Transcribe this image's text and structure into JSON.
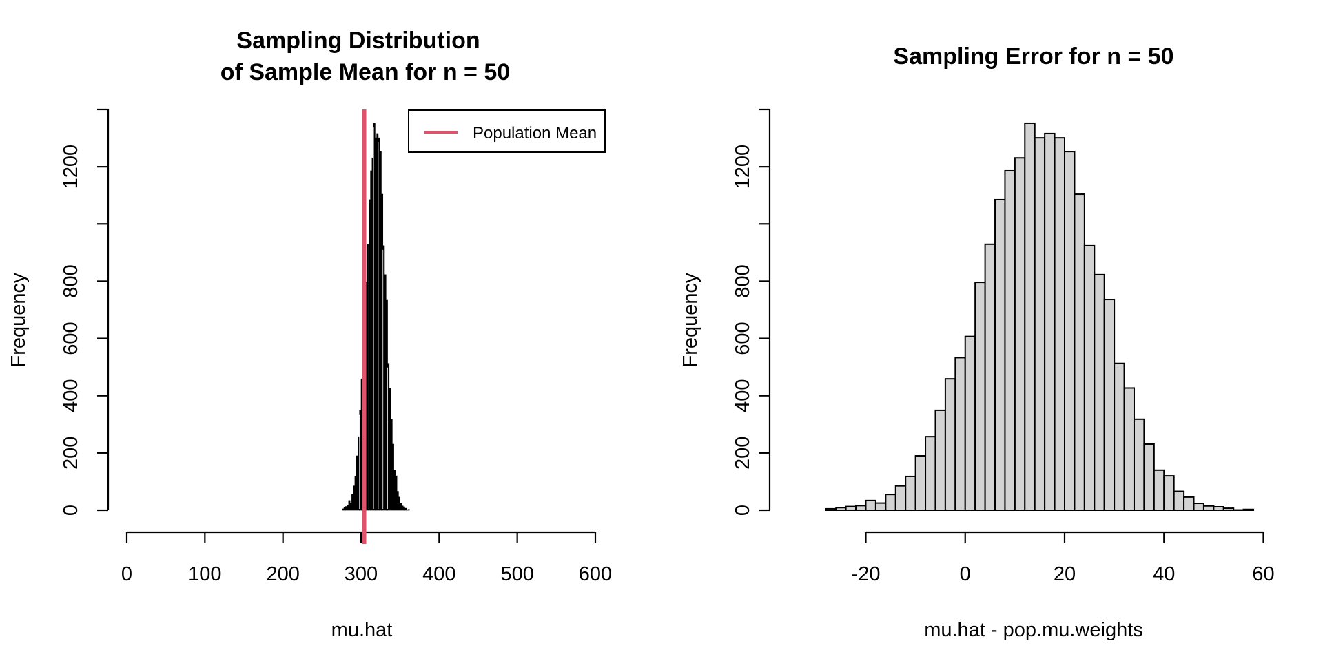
{
  "chart_data": [
    {
      "type": "bar",
      "subtype": "histogram",
      "title": "Sampling Distribution\nof Sample Mean for n = 50",
      "title_lines": [
        "Sampling Distribution",
        "of Sample Mean for n = 50"
      ],
      "xlabel": "mu.hat",
      "ylabel": "Frequency",
      "xlim": [
        0,
        600
      ],
      "ylim": [
        0,
        1400
      ],
      "xticks": [
        0,
        100,
        200,
        300,
        400,
        500,
        600
      ],
      "xtick_labels": [
        "0",
        "100",
        "200",
        "300",
        "400",
        "500",
        "600"
      ],
      "yticks": [
        0,
        200,
        400,
        600,
        800,
        1000,
        1200,
        1400
      ],
      "ytick_labels": [
        "0",
        "200",
        "400",
        "600",
        "800",
        "",
        "1200",
        ""
      ],
      "bin_width": 2,
      "bin_start": 268,
      "counts": [
        0,
        0,
        0,
        0,
        5,
        9,
        13,
        16,
        34,
        25,
        55,
        85,
        118,
        190,
        257,
        349,
        459,
        533,
        607,
        796,
        929,
        1085,
        1186,
        1231,
        1352,
        1301,
        1316,
        1301,
        1253,
        1104,
        924,
        823,
        736,
        513,
        427,
        318,
        231,
        140,
        120,
        66,
        46,
        24,
        15,
        12,
        7,
        1,
        3
      ],
      "bar_fill": "#000000",
      "bar_border": "#ffffff",
      "vline": {
        "x": 304,
        "color": "#DF536B",
        "label": "Population Mean"
      },
      "legend": {
        "position": "top-right",
        "entries": [
          {
            "label": "Population Mean",
            "color": "#DF536B",
            "style": "line"
          }
        ]
      },
      "grid": false
    },
    {
      "type": "bar",
      "subtype": "histogram",
      "title": "Sampling Error for n = 50",
      "title_lines": [
        "Sampling Error for n = 50"
      ],
      "xlabel": "mu.hat - pop.mu.weights",
      "ylabel": "Frequency",
      "xlim": [
        -20,
        60
      ],
      "ylim": [
        0,
        1400
      ],
      "xticks": [
        -20,
        0,
        20,
        40,
        60
      ],
      "xtick_labels": [
        "-20",
        "0",
        "20",
        "40",
        "60"
      ],
      "yticks": [
        0,
        200,
        400,
        600,
        800,
        1000,
        1200,
        1400
      ],
      "ytick_labels": [
        "0",
        "200",
        "400",
        "600",
        "800",
        "",
        "1200",
        ""
      ],
      "bin_width": 2,
      "bin_start": -36,
      "counts": [
        0,
        0,
        0,
        0,
        5,
        9,
        13,
        16,
        34,
        25,
        55,
        85,
        118,
        190,
        257,
        349,
        459,
        533,
        607,
        796,
        929,
        1085,
        1186,
        1231,
        1352,
        1301,
        1316,
        1301,
        1253,
        1104,
        924,
        823,
        736,
        513,
        427,
        318,
        231,
        140,
        120,
        66,
        46,
        24,
        15,
        12,
        7,
        1,
        3
      ],
      "bar_fill": "#D3D3D3",
      "bar_border": "#000000",
      "grid": false
    }
  ]
}
